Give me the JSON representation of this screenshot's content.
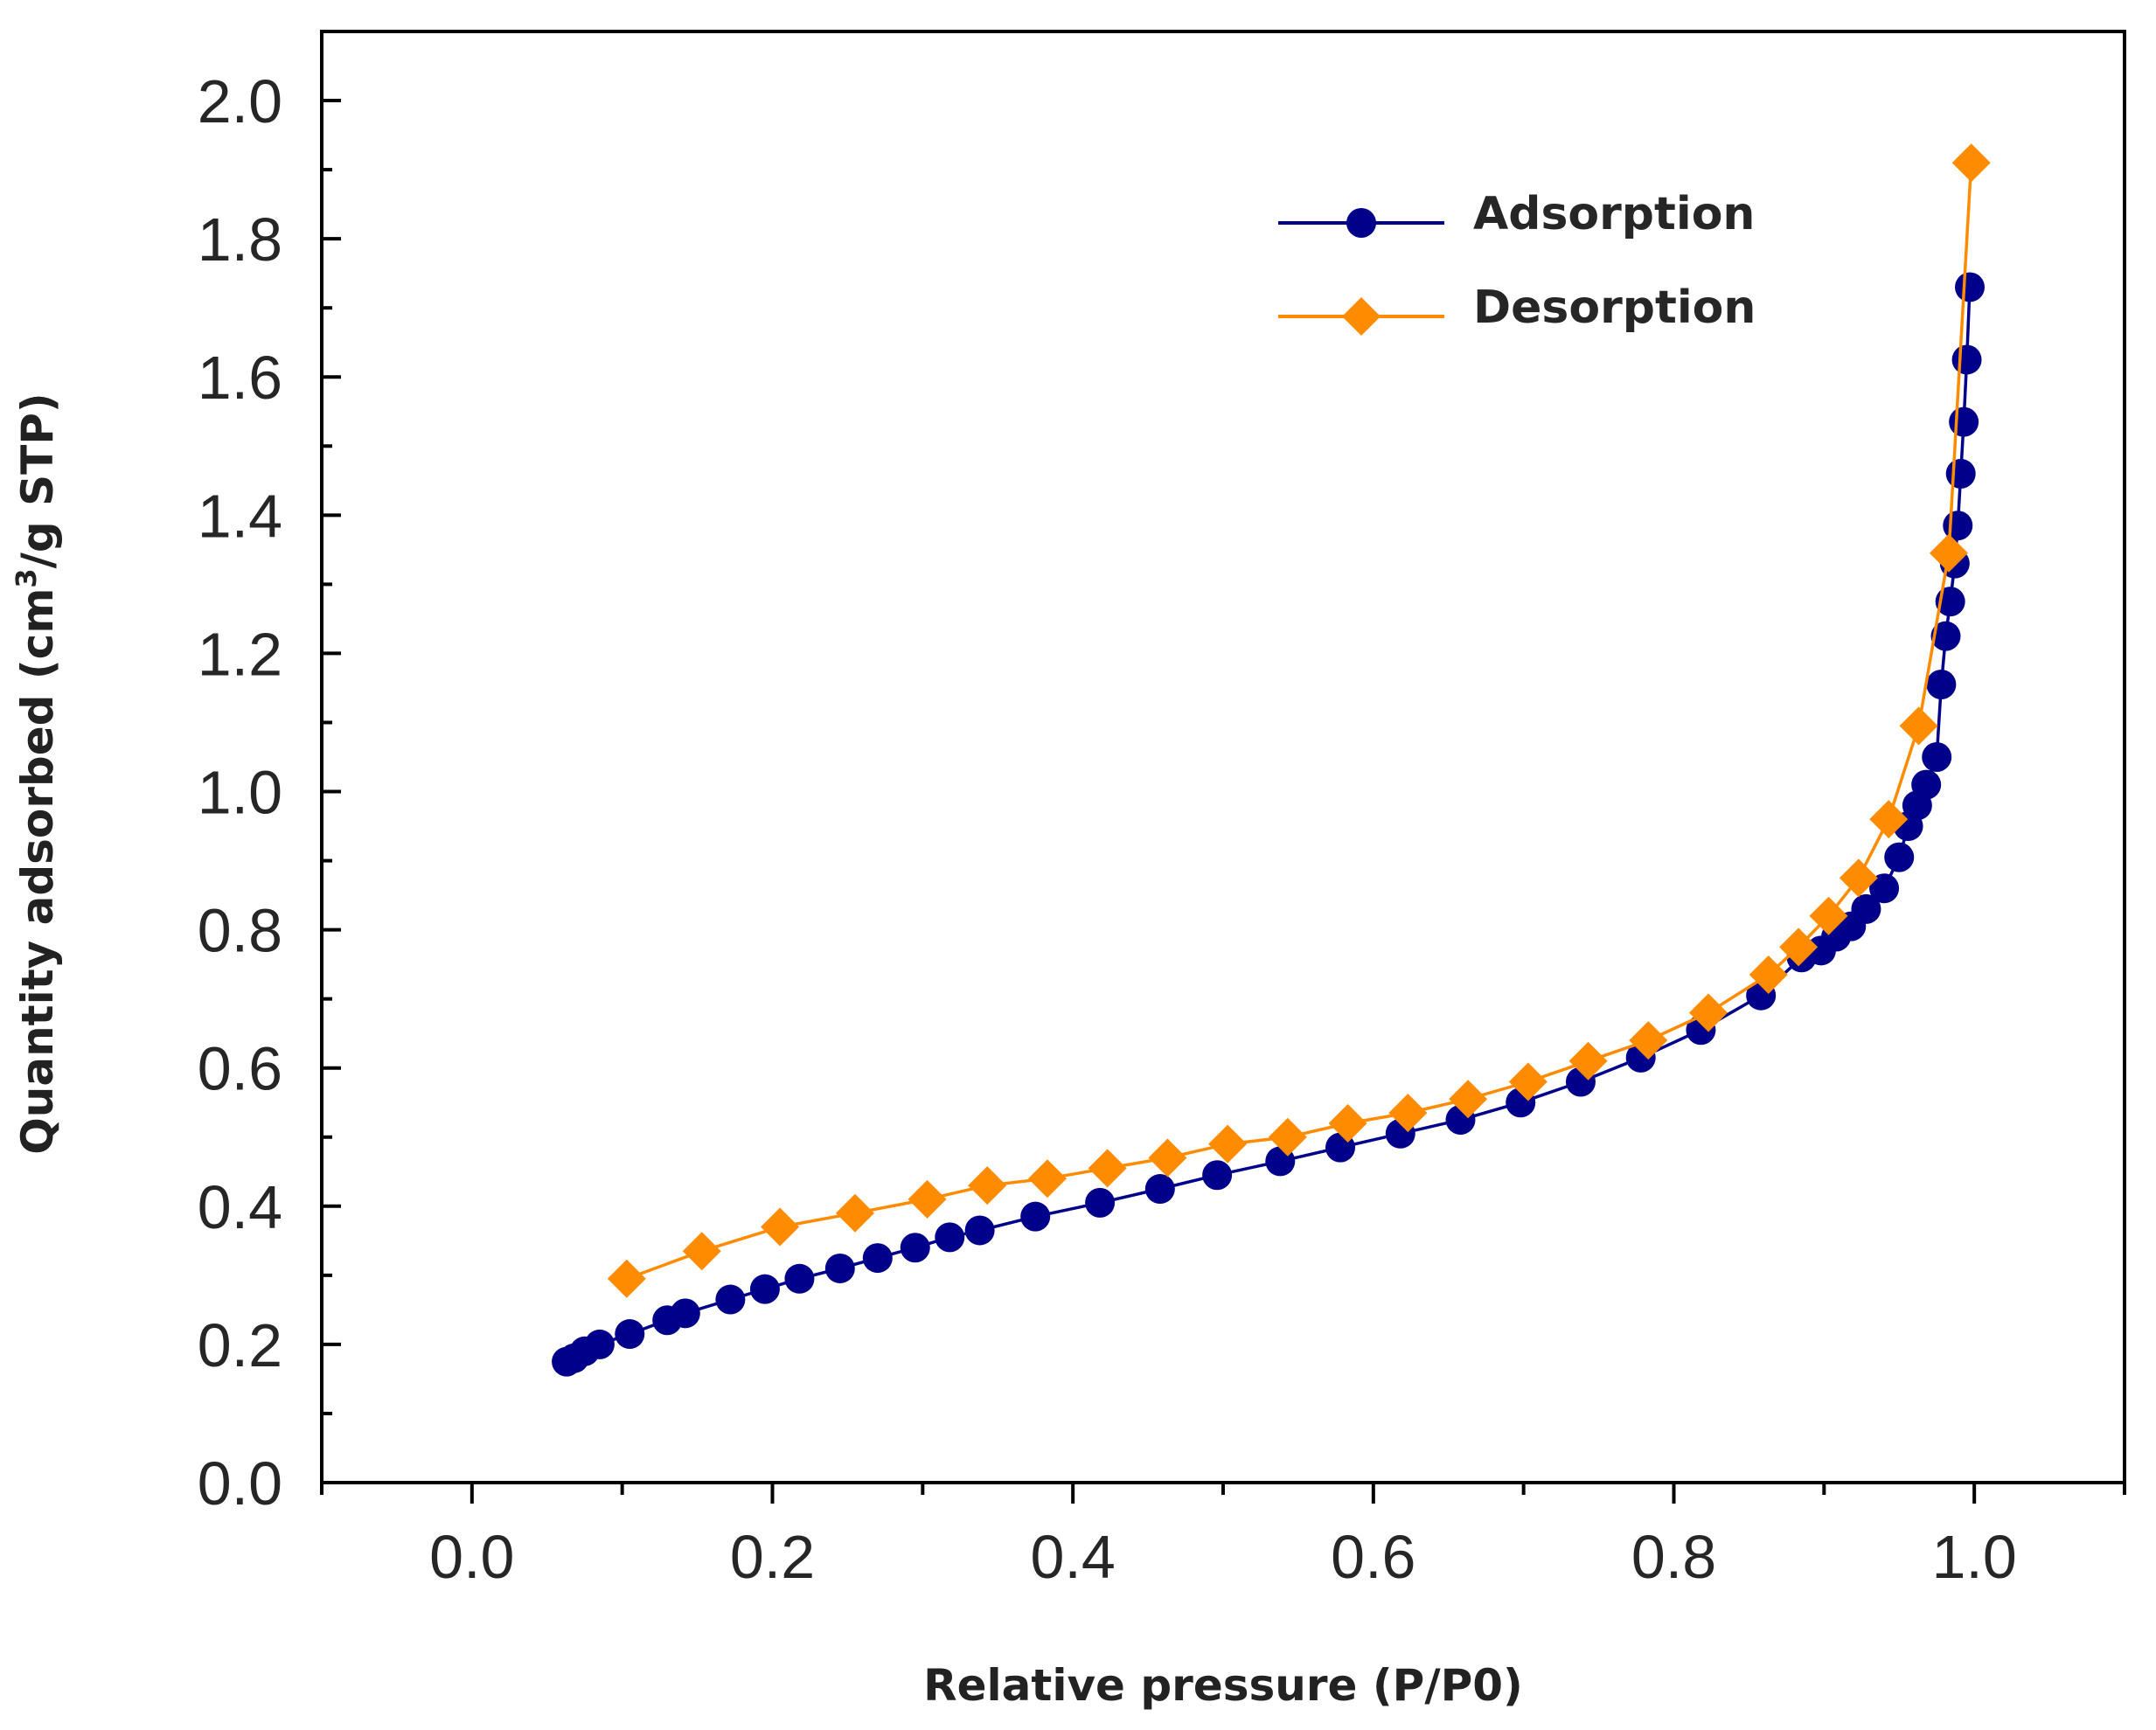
{
  "chart_data": {
    "type": "line",
    "title": "",
    "xlabel": "Relative pressure (P/P0)",
    "ylabel_prefix": "Quantity adsorbed (cm",
    "ylabel_sup": "3",
    "ylabel_suffix": "/g STP)",
    "xlim": [
      -0.1,
      1.1
    ],
    "ylim": [
      0.0,
      2.1
    ],
    "x_ticks": [
      0.0,
      0.2,
      0.4,
      0.6,
      0.8,
      1.0
    ],
    "x_tick_labels": [
      "0.0",
      "0.2",
      "0.4",
      "0.6",
      "0.8",
      "1.0"
    ],
    "y_ticks": [
      0.0,
      0.2,
      0.4,
      0.6,
      0.8,
      1.0,
      1.2,
      1.4,
      1.6,
      1.8,
      2.0
    ],
    "y_tick_labels": [
      "0.0",
      "0.2",
      "0.4",
      "0.6",
      "0.8",
      "1.0",
      "1.2",
      "1.4",
      "1.6",
      "1.8",
      "2.0"
    ],
    "grid": false,
    "legend_position": "top-right",
    "series": [
      {
        "name": "Adsorption",
        "color": "#00008B",
        "marker": "circle",
        "x": [
          0.063,
          0.068,
          0.075,
          0.085,
          0.105,
          0.13,
          0.142,
          0.172,
          0.195,
          0.218,
          0.245,
          0.27,
          0.295,
          0.318,
          0.338,
          0.375,
          0.418,
          0.458,
          0.496,
          0.538,
          0.578,
          0.618,
          0.658,
          0.698,
          0.738,
          0.778,
          0.818,
          0.858,
          0.885,
          0.898,
          0.908,
          0.918,
          0.928,
          0.94,
          0.95,
          0.956,
          0.962,
          0.968,
          0.975,
          0.978,
          0.981,
          0.984,
          0.987,
          0.989,
          0.991,
          0.993,
          0.995,
          0.997
        ],
        "y": [
          0.175,
          0.18,
          0.19,
          0.2,
          0.215,
          0.235,
          0.245,
          0.265,
          0.28,
          0.295,
          0.31,
          0.325,
          0.34,
          0.355,
          0.365,
          0.385,
          0.405,
          0.425,
          0.445,
          0.465,
          0.485,
          0.505,
          0.525,
          0.55,
          0.58,
          0.615,
          0.655,
          0.705,
          0.76,
          0.77,
          0.79,
          0.805,
          0.83,
          0.86,
          0.905,
          0.95,
          0.98,
          1.01,
          1.05,
          1.155,
          1.225,
          1.275,
          1.33,
          1.385,
          1.46,
          1.535,
          1.625,
          1.73
        ]
      },
      {
        "name": "Desorption",
        "color": "#FF8C00",
        "marker": "diamond",
        "x": [
          0.103,
          0.153,
          0.205,
          0.255,
          0.303,
          0.343,
          0.383,
          0.423,
          0.463,
          0.503,
          0.543,
          0.583,
          0.623,
          0.663,
          0.703,
          0.743,
          0.783,
          0.823,
          0.863,
          0.883,
          0.903,
          0.923,
          0.943,
          0.963,
          0.983,
          0.998
        ],
        "y": [
          0.295,
          0.335,
          0.37,
          0.39,
          0.41,
          0.43,
          0.44,
          0.455,
          0.47,
          0.49,
          0.5,
          0.52,
          0.535,
          0.555,
          0.58,
          0.61,
          0.64,
          0.68,
          0.735,
          0.775,
          0.82,
          0.875,
          0.96,
          1.095,
          1.345,
          1.91
        ]
      }
    ]
  }
}
